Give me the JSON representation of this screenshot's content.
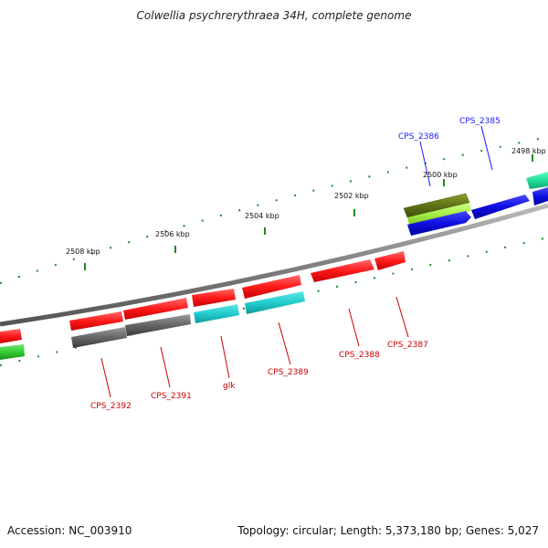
{
  "title": "Colwellia psychrerythraea 34H, complete genome",
  "footer": {
    "accession_label": "Accession:",
    "accession": "NC_003910",
    "topology_label": "Topology:",
    "topology": "circular",
    "length_label": "Length:",
    "length": "5,373,180 bp",
    "genes_label": "Genes:",
    "genes": "5,027"
  },
  "ruler_labels": [
    "2498 kbp",
    "2500 kbp",
    "2502 kbp",
    "2504 kbp",
    "2506 kbp",
    "2508 kbp"
  ],
  "gene_labels": {
    "forward": [
      "CPS_2385",
      "CPS_2386"
    ],
    "reverse": [
      "CPS_2387",
      "CPS_2388",
      "CPS_2389",
      "glk",
      "CPS_2391",
      "CPS_2392"
    ]
  },
  "colors": {
    "forward_label": "#1a1aff",
    "reverse_label": "#cc0000",
    "backbone": "#888888",
    "tick": "#1e8a1e",
    "red_gene": "#ff1a1a",
    "blue_gene": "#1a1aee",
    "cyan_gene": "#22cccc",
    "gray_gene": "#666666",
    "olive_gene": "#667a1a",
    "lime_gene": "#aaee55",
    "teal_gene": "#22dd99",
    "green_gene": "#33cc33"
  }
}
